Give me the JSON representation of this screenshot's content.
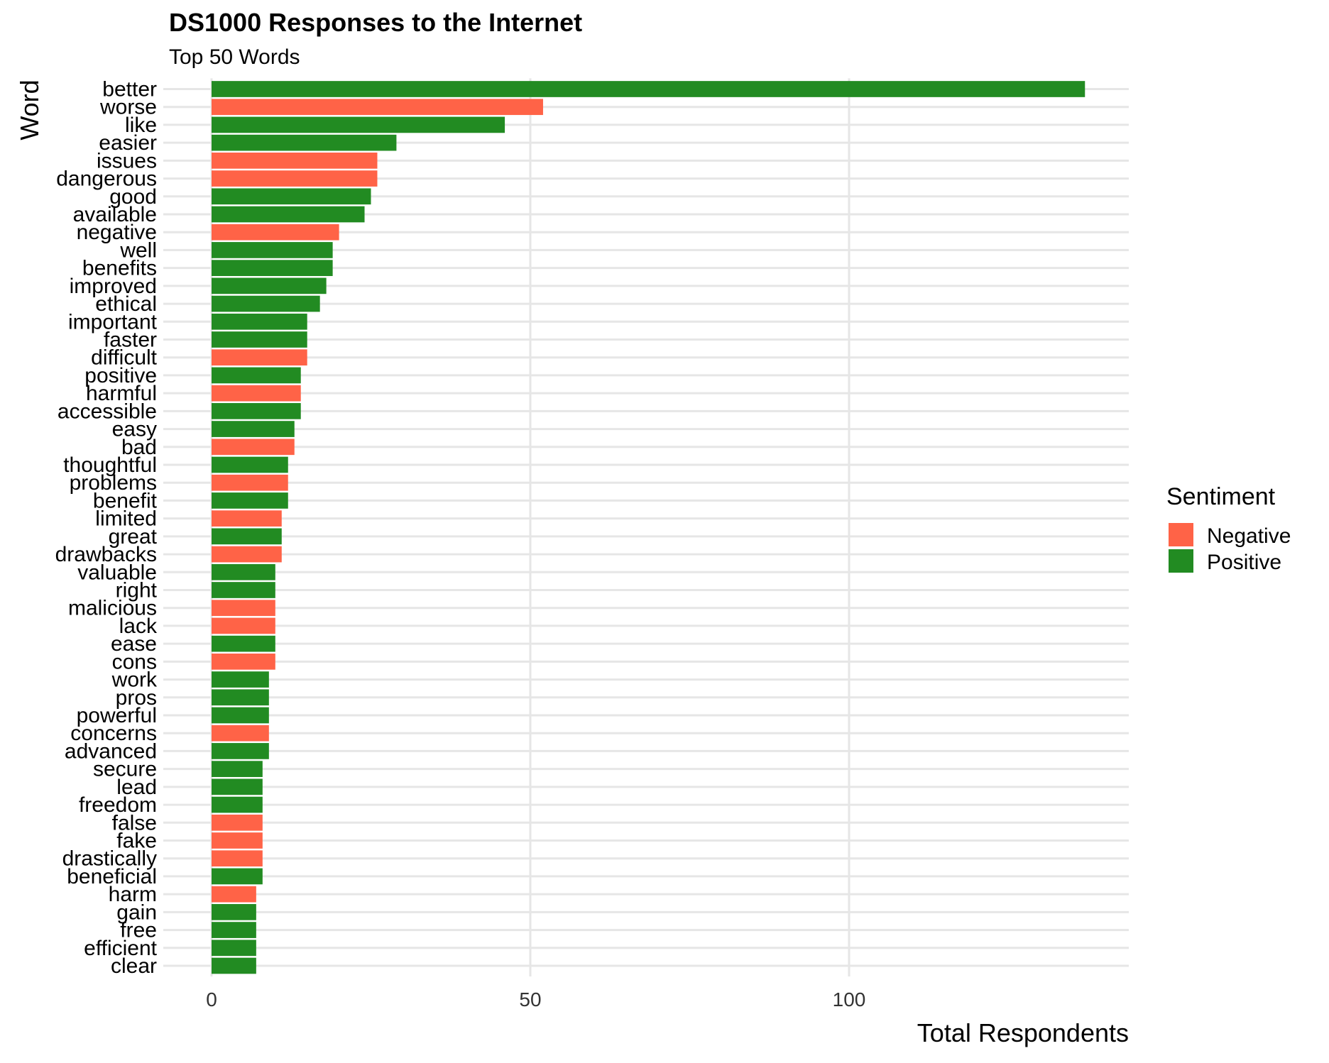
{
  "chart_data": {
    "type": "bar",
    "orientation": "horizontal",
    "title": "DS1000 Responses to the Internet",
    "subtitle": "Top 50 Words",
    "xlabel": "Total Respondents",
    "ylabel": "Word",
    "xlim": [
      0,
      143
    ],
    "x_ticks": [
      0,
      50,
      100
    ],
    "grid": true,
    "legend": {
      "title": "Sentiment",
      "position": "right",
      "entries": [
        {
          "label": "Negative",
          "color": "#ff6347"
        },
        {
          "label": "Positive",
          "color": "#228b22"
        }
      ]
    },
    "categories": [
      "better",
      "worse",
      "like",
      "easier",
      "issues",
      "dangerous",
      "good",
      "available",
      "negative",
      "well",
      "benefits",
      "improved",
      "ethical",
      "important",
      "faster",
      "difficult",
      "positive",
      "harmful",
      "accessible",
      "easy",
      "bad",
      "thoughtful",
      "problems",
      "benefit",
      "limited",
      "great",
      "drawbacks",
      "valuable",
      "right",
      "malicious",
      "lack",
      "ease",
      "cons",
      "work",
      "pros",
      "powerful",
      "concerns",
      "advanced",
      "secure",
      "lead",
      "freedom",
      "false",
      "fake",
      "drastically",
      "beneficial",
      "harm",
      "gain",
      "free",
      "efficient",
      "clear"
    ],
    "values": [
      137,
      52,
      46,
      29,
      26,
      26,
      25,
      24,
      20,
      19,
      19,
      18,
      17,
      15,
      15,
      15,
      14,
      14,
      14,
      13,
      13,
      12,
      12,
      12,
      11,
      11,
      11,
      10,
      10,
      10,
      10,
      10,
      10,
      9,
      9,
      9,
      9,
      9,
      8,
      8,
      8,
      8,
      8,
      8,
      8,
      7,
      7,
      7,
      7,
      7
    ],
    "sentiment": [
      "Positive",
      "Negative",
      "Positive",
      "Positive",
      "Negative",
      "Negative",
      "Positive",
      "Positive",
      "Negative",
      "Positive",
      "Positive",
      "Positive",
      "Positive",
      "Positive",
      "Positive",
      "Negative",
      "Positive",
      "Negative",
      "Positive",
      "Positive",
      "Negative",
      "Positive",
      "Negative",
      "Positive",
      "Negative",
      "Positive",
      "Negative",
      "Positive",
      "Positive",
      "Negative",
      "Negative",
      "Positive",
      "Negative",
      "Positive",
      "Positive",
      "Positive",
      "Negative",
      "Positive",
      "Positive",
      "Positive",
      "Positive",
      "Negative",
      "Negative",
      "Negative",
      "Positive",
      "Negative",
      "Positive",
      "Positive",
      "Positive",
      "Positive"
    ]
  }
}
